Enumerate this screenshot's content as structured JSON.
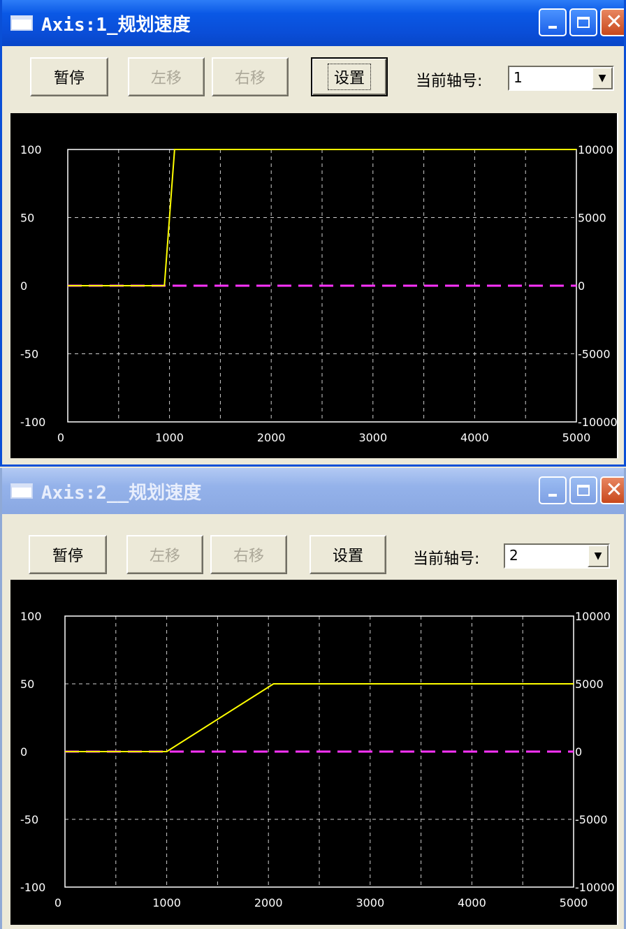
{
  "windows": [
    {
      "title": "Axis:1_规划速度",
      "active": true,
      "toolbar": {
        "pause_label": "暂停",
        "left_label": "左移",
        "right_label": "右移",
        "settings_label": "设置",
        "axis_label": "当前轴号:",
        "axis_value": "1"
      },
      "chart_data": {
        "type": "line",
        "x_ticks": [
          "0",
          "1000",
          "2000",
          "3000",
          "4000",
          "5000"
        ],
        "y_left_ticks": [
          "100",
          "50",
          "0",
          "-50",
          "-100"
        ],
        "y_right_ticks": [
          "10000",
          "5000",
          "0",
          "-5000",
          "-10000"
        ],
        "xlim": [
          0,
          5000
        ],
        "ylim": [
          -100,
          100
        ],
        "grid": true,
        "series": [
          {
            "color": "#ffff00",
            "style": "solid",
            "x": [
              0,
              950,
              1050,
              5000
            ],
            "y": [
              0,
              0,
              100,
              100
            ]
          },
          {
            "color": "#ff33ff",
            "style": "dashed",
            "x": [
              0,
              5000
            ],
            "y": [
              0,
              0
            ]
          }
        ]
      }
    },
    {
      "title": "Axis:2__规划速度",
      "active": false,
      "toolbar": {
        "pause_label": "暂停",
        "left_label": "左移",
        "right_label": "右移",
        "settings_label": "设置",
        "axis_label": "当前轴号:",
        "axis_value": "2"
      },
      "chart_data": {
        "type": "line",
        "x_ticks": [
          "0",
          "1000",
          "2000",
          "3000",
          "4000",
          "5000"
        ],
        "y_left_ticks": [
          "100",
          "50",
          "0",
          "-50",
          "-100"
        ],
        "y_right_ticks": [
          "10000",
          "5000",
          "0",
          "-5000",
          "-10000"
        ],
        "xlim": [
          0,
          5000
        ],
        "ylim": [
          -100,
          100
        ],
        "grid": true,
        "series": [
          {
            "color": "#ffff00",
            "style": "solid",
            "x": [
              0,
              1000,
              2050,
              5000
            ],
            "y": [
              0,
              0,
              50,
              50
            ]
          },
          {
            "color": "#ff33ff",
            "style": "dashed",
            "x": [
              0,
              5000
            ],
            "y": [
              0,
              0
            ]
          }
        ]
      }
    }
  ]
}
